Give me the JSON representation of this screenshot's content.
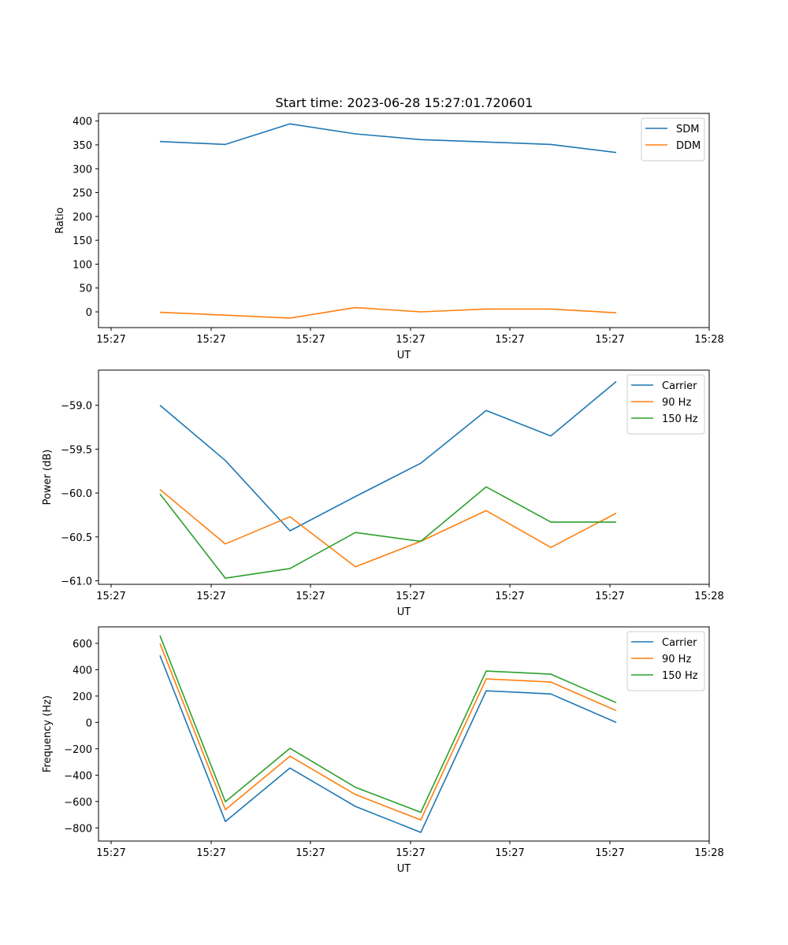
{
  "figure": {
    "title": "Start time: 2023-06-28 15:27:01.720601"
  },
  "chart_data": [
    {
      "type": "line",
      "xlabel": "UT",
      "ylabel": "Ratio",
      "x_tick_labels": [
        "15:27",
        "15:27",
        "15:27",
        "15:27",
        "15:27",
        "15:27",
        "15:28"
      ],
      "yticks": [
        0,
        50,
        100,
        150,
        200,
        250,
        300,
        350,
        400
      ],
      "ylim": [
        -33,
        416
      ],
      "legend": "top-right",
      "series": [
        {
          "name": "SDM",
          "color": "#1f77b4",
          "values": [
            357,
            351,
            394,
            373,
            361,
            356,
            351,
            334
          ]
        },
        {
          "name": "DDM",
          "color": "#ff7f0e",
          "values": [
            -1,
            -7,
            -13,
            9,
            0,
            6,
            6,
            -2
          ]
        }
      ]
    },
    {
      "type": "line",
      "xlabel": "UT",
      "ylabel": "Power (dB)",
      "x_tick_labels": [
        "15:27",
        "15:27",
        "15:27",
        "15:27",
        "15:27",
        "15:27",
        "15:28"
      ],
      "yticks": [
        -59.0,
        -59.5,
        -60.0,
        -60.5,
        -61.0
      ],
      "ytick_labels": [
        "−59.0",
        "−59.5",
        "−60.0",
        "−60.5",
        "−61.0"
      ],
      "ylim": [
        -61.04,
        -58.6
      ],
      "legend": "top-right",
      "series": [
        {
          "name": "Carrier",
          "color": "#1f77b4",
          "values": [
            -59.0,
            -59.63,
            -60.43,
            -60.04,
            -59.66,
            -59.06,
            -59.35,
            -58.73
          ]
        },
        {
          "name": "90 Hz",
          "color": "#ff7f0e",
          "values": [
            -59.96,
            -60.58,
            -60.27,
            -60.84,
            -60.55,
            -60.2,
            -60.62,
            -60.23
          ]
        },
        {
          "name": "150 Hz",
          "color": "#2ca02c",
          "values": [
            -60.01,
            -60.97,
            -60.86,
            -60.45,
            -60.55,
            -59.93,
            -60.33,
            -60.33
          ]
        }
      ]
    },
    {
      "type": "line",
      "xlabel": "UT",
      "ylabel": "Frequency (Hz)",
      "x_tick_labels": [
        "15:27",
        "15:27",
        "15:27",
        "15:27",
        "15:27",
        "15:27",
        "15:28"
      ],
      "yticks": [
        -800,
        -600,
        -400,
        -200,
        0,
        200,
        400,
        600
      ],
      "ytick_labels": [
        "−800",
        "−600",
        "−400",
        "−200",
        "0",
        "200",
        "400",
        "600"
      ],
      "ylim": [
        -900,
        725
      ],
      "legend": "top-right",
      "series": [
        {
          "name": "Carrier",
          "color": "#1f77b4",
          "values": [
            508,
            -752,
            -346,
            -637,
            -834,
            240,
            216,
            0
          ]
        },
        {
          "name": "90 Hz",
          "color": "#ff7f0e",
          "values": [
            598,
            -662,
            -256,
            -547,
            -740,
            330,
            306,
            90
          ]
        },
        {
          "name": "150 Hz",
          "color": "#2ca02c",
          "values": [
            658,
            -602,
            -196,
            -492,
            -682,
            390,
            366,
            150
          ]
        }
      ]
    }
  ]
}
